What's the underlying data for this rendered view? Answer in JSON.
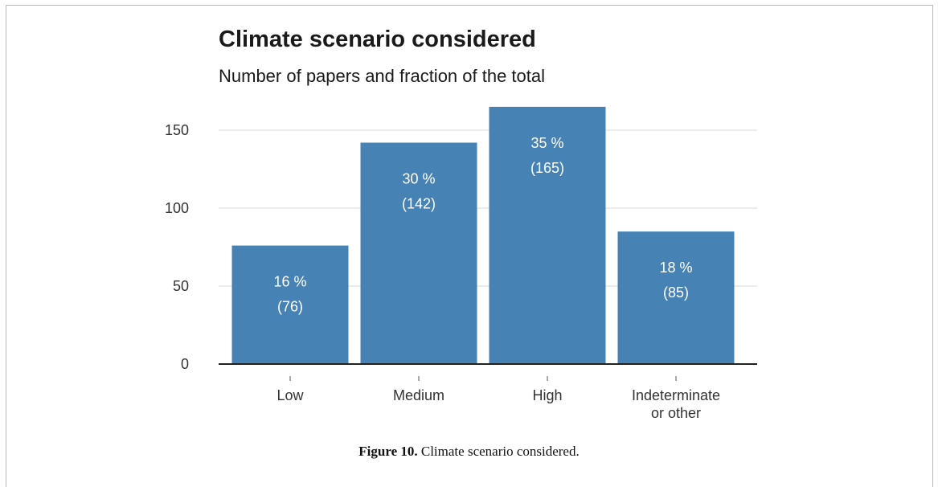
{
  "chart_data": {
    "type": "bar",
    "title": "Climate scenario considered",
    "subtitle": "Number of papers and fraction of the total",
    "xlabel": "",
    "ylabel": "",
    "categories": [
      [
        "Low"
      ],
      [
        "Medium"
      ],
      [
        "High"
      ],
      [
        "Indeterminate",
        "or other"
      ]
    ],
    "values": [
      76,
      142,
      165,
      85
    ],
    "bar_labels": [
      {
        "percent": "16 %",
        "count": "(76)"
      },
      {
        "percent": "30 %",
        "count": "(142)"
      },
      {
        "percent": "35 %",
        "count": "(165)"
      },
      {
        "percent": "18 %",
        "count": "(85)"
      }
    ],
    "yticks": [
      0,
      50,
      100,
      150
    ],
    "ylim": [
      0,
      170
    ],
    "grid": true,
    "bar_color": "#4682b4"
  },
  "caption": {
    "label": "Figure 10.",
    "text": "Climate scenario considered."
  }
}
